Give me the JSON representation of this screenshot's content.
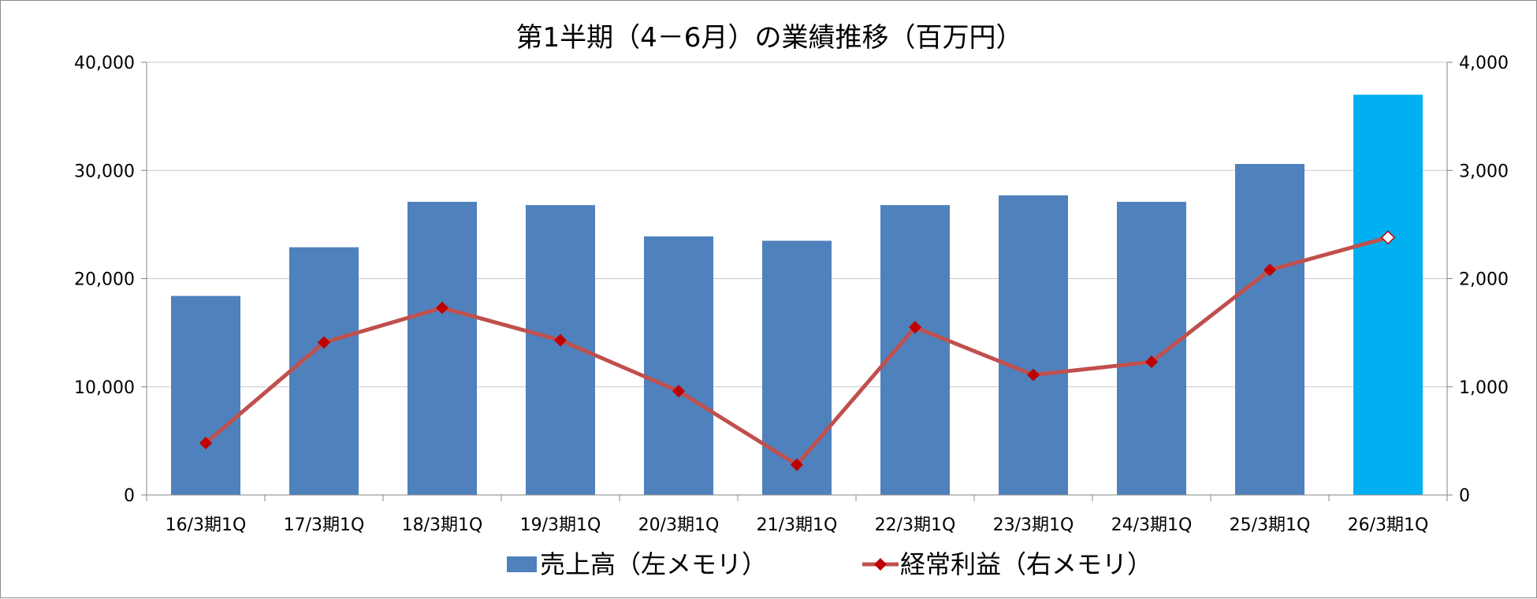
{
  "chart_data": {
    "type": "bar",
    "title": "第1半期（4－6月）の業績推移（百万円）",
    "categories": [
      "16/3期1Q",
      "17/3期1Q",
      "18/3期1Q",
      "19/3期1Q",
      "20/3期1Q",
      "21/3期1Q",
      "22/3期1Q",
      "23/3期1Q",
      "24/3期1Q",
      "25/3期1Q",
      "26/3期1Q"
    ],
    "y_left": {
      "ylim": [
        0,
        40000
      ],
      "ticks": [
        "0",
        "10,000",
        "20,000",
        "30,000",
        "40,000"
      ],
      "tick_values": [
        0,
        10000,
        20000,
        30000,
        40000
      ]
    },
    "y_right": {
      "ylim": [
        0,
        4000
      ],
      "ticks": [
        "0",
        "1,000",
        "2,000",
        "3,000",
        "4,000"
      ],
      "tick_values": [
        0,
        1000,
        2000,
        3000,
        4000
      ]
    },
    "series": [
      {
        "name": "売上高（左メモリ）",
        "type": "bar",
        "axis": "left",
        "color": "#4f81bd",
        "highlight_color": "#00b0f0",
        "highlight_index": 10,
        "values": [
          18400,
          22900,
          27100,
          26800,
          23900,
          23500,
          26800,
          27700,
          27100,
          30600,
          37000
        ]
      },
      {
        "name": "経常利益（右メモリ）",
        "type": "line",
        "axis": "right",
        "color": "#c0504d",
        "marker_color": "#c00000",
        "highlight_index": 10,
        "values": [
          480,
          1410,
          1730,
          1430,
          960,
          280,
          1550,
          1110,
          1230,
          2080,
          2380
        ]
      }
    ],
    "grid": true,
    "legend": "bottom"
  }
}
